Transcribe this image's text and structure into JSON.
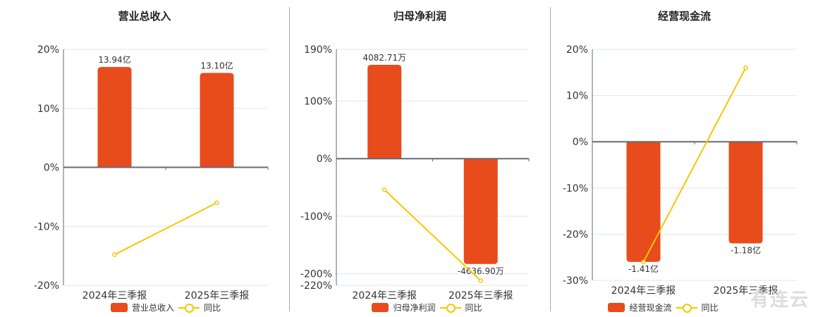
{
  "watermark": "有连云",
  "colors": {
    "bar": "#E84B1C",
    "line": "#F5C800",
    "grid": "#e3e6ef",
    "axis": "#666a75"
  },
  "chart_data": [
    {
      "type": "bar+line",
      "title": "营业总收入",
      "categories": [
        "2024年三季报",
        "2025年三季报"
      ],
      "ylim": [
        -20,
        20
      ],
      "yticks": [
        20,
        10,
        0,
        -10,
        -20
      ],
      "tick_suffix": "%",
      "bar_series": {
        "name": "营业总收入",
        "values": [
          17,
          16
        ],
        "labels": [
          "13.94亿",
          "13.10亿"
        ]
      },
      "line_series": {
        "name": "同比",
        "values": [
          -14.8,
          -6
        ]
      }
    },
    {
      "type": "bar+line",
      "title": "归母净利润",
      "categories": [
        "2024年三季报",
        "2025年三季报"
      ],
      "ylim": [
        -220,
        190
      ],
      "yticks": [
        190,
        100,
        0,
        -100,
        -200,
        -220
      ],
      "tick_suffix": "%",
      "bar_series": {
        "name": "归母净利润",
        "values": [
          163,
          -183
        ],
        "labels": [
          "4082.71万",
          "-4636.90万"
        ]
      },
      "line_series": {
        "name": "同比",
        "values": [
          -54,
          -212
        ]
      }
    },
    {
      "type": "bar+line",
      "title": "经营现金流",
      "categories": [
        "2024年三季报",
        "2025年三季报"
      ],
      "ylim": [
        -30,
        20
      ],
      "yticks": [
        20,
        10,
        0,
        -10,
        -20,
        -30
      ],
      "tick_suffix": "%",
      "bar_series": {
        "name": "经营现金流",
        "values": [
          -26,
          -22
        ],
        "labels": [
          "-1.41亿",
          "-1.18亿"
        ]
      },
      "line_series": {
        "name": "同比",
        "values": [
          -26,
          16
        ]
      }
    }
  ]
}
